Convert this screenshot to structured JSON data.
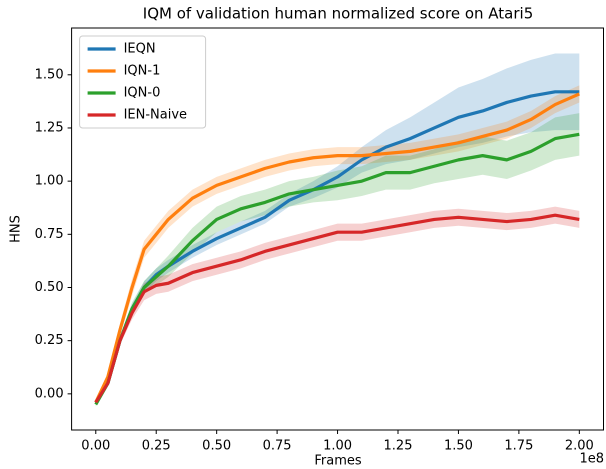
{
  "chart_data": {
    "type": "line",
    "title": "IQM of validation human normalized score on Atari5",
    "xlabel": "Frames",
    "ylabel": "HNS",
    "x_offset_label": "1e8",
    "x": [
      0,
      0.05,
      0.1,
      0.15,
      0.2,
      0.25,
      0.3,
      0.4,
      0.5,
      0.6,
      0.7,
      0.8,
      0.9,
      1.0,
      1.1,
      1.2,
      1.3,
      1.4,
      1.5,
      1.6,
      1.7,
      1.8,
      1.9,
      2.0
    ],
    "series": [
      {
        "name": "IEQN",
        "color": "#1f77b4",
        "values": [
          -0.04,
          0.05,
          0.25,
          0.4,
          0.5,
          0.56,
          0.6,
          0.67,
          0.73,
          0.78,
          0.83,
          0.91,
          0.96,
          1.02,
          1.1,
          1.16,
          1.2,
          1.25,
          1.3,
          1.33,
          1.37,
          1.4,
          1.42,
          1.42
        ],
        "lower": [
          -0.05,
          0.04,
          0.23,
          0.38,
          0.47,
          0.53,
          0.57,
          0.64,
          0.7,
          0.75,
          0.8,
          0.88,
          0.92,
          0.97,
          1.04,
          1.08,
          1.1,
          1.13,
          1.16,
          1.18,
          1.21,
          1.23,
          1.24,
          1.24
        ],
        "upper": [
          -0.03,
          0.06,
          0.27,
          0.42,
          0.53,
          0.59,
          0.63,
          0.7,
          0.76,
          0.81,
          0.86,
          0.94,
          1.0,
          1.07,
          1.16,
          1.24,
          1.3,
          1.37,
          1.44,
          1.48,
          1.53,
          1.57,
          1.6,
          1.6
        ]
      },
      {
        "name": "IQN-1",
        "color": "#ff7f0e",
        "values": [
          -0.04,
          0.08,
          0.3,
          0.5,
          0.68,
          0.75,
          0.82,
          0.92,
          0.98,
          1.02,
          1.06,
          1.09,
          1.11,
          1.12,
          1.12,
          1.13,
          1.14,
          1.16,
          1.18,
          1.21,
          1.24,
          1.29,
          1.36,
          1.41
        ],
        "lower": [
          -0.05,
          0.07,
          0.27,
          0.46,
          0.64,
          0.71,
          0.78,
          0.88,
          0.94,
          0.98,
          1.02,
          1.05,
          1.07,
          1.08,
          1.08,
          1.09,
          1.1,
          1.12,
          1.14,
          1.17,
          1.2,
          1.25,
          1.32,
          1.37
        ],
        "upper": [
          -0.03,
          0.09,
          0.33,
          0.54,
          0.72,
          0.79,
          0.86,
          0.96,
          1.02,
          1.06,
          1.1,
          1.13,
          1.15,
          1.16,
          1.16,
          1.17,
          1.18,
          1.2,
          1.22,
          1.25,
          1.28,
          1.33,
          1.4,
          1.45
        ]
      },
      {
        "name": "IQN-0",
        "color": "#2ca02c",
        "values": [
          -0.05,
          0.05,
          0.25,
          0.4,
          0.5,
          0.55,
          0.6,
          0.72,
          0.82,
          0.87,
          0.9,
          0.94,
          0.96,
          0.98,
          1.0,
          1.04,
          1.04,
          1.07,
          1.1,
          1.12,
          1.1,
          1.14,
          1.2,
          1.22
        ],
        "lower": [
          -0.06,
          0.04,
          0.23,
          0.37,
          0.47,
          0.51,
          0.55,
          0.66,
          0.76,
          0.81,
          0.84,
          0.88,
          0.9,
          0.91,
          0.93,
          0.96,
          0.96,
          0.99,
          1.01,
          1.03,
          1.01,
          1.05,
          1.1,
          1.12
        ],
        "upper": [
          -0.04,
          0.06,
          0.27,
          0.43,
          0.53,
          0.59,
          0.65,
          0.78,
          0.88,
          0.93,
          0.96,
          1.0,
          1.02,
          1.05,
          1.07,
          1.12,
          1.12,
          1.15,
          1.19,
          1.21,
          1.19,
          1.23,
          1.3,
          1.32
        ]
      },
      {
        "name": "IEN-Naive",
        "color": "#d62728",
        "values": [
          -0.04,
          0.05,
          0.25,
          0.38,
          0.48,
          0.51,
          0.52,
          0.57,
          0.6,
          0.63,
          0.67,
          0.7,
          0.73,
          0.76,
          0.76,
          0.78,
          0.8,
          0.82,
          0.83,
          0.82,
          0.81,
          0.82,
          0.84,
          0.82
        ],
        "lower": [
          -0.05,
          0.04,
          0.23,
          0.35,
          0.44,
          0.47,
          0.48,
          0.53,
          0.56,
          0.59,
          0.63,
          0.66,
          0.69,
          0.72,
          0.72,
          0.74,
          0.76,
          0.78,
          0.79,
          0.78,
          0.77,
          0.78,
          0.8,
          0.78
        ],
        "upper": [
          -0.03,
          0.06,
          0.27,
          0.41,
          0.52,
          0.55,
          0.56,
          0.61,
          0.64,
          0.67,
          0.71,
          0.74,
          0.77,
          0.8,
          0.8,
          0.82,
          0.84,
          0.86,
          0.87,
          0.86,
          0.85,
          0.86,
          0.88,
          0.86
        ]
      }
    ],
    "xlim": [
      -0.1,
      2.1
    ],
    "ylim": [
      -0.17,
      1.72
    ],
    "xticks": [
      {
        "value": 0,
        "label": "0.00"
      },
      {
        "value": 0.25,
        "label": "0.25"
      },
      {
        "value": 0.5,
        "label": "0.50"
      },
      {
        "value": 0.75,
        "label": "0.75"
      },
      {
        "value": 1.0,
        "label": "1.00"
      },
      {
        "value": 1.25,
        "label": "1.25"
      },
      {
        "value": 1.5,
        "label": "1.50"
      },
      {
        "value": 1.75,
        "label": "1.75"
      },
      {
        "value": 2.0,
        "label": "2.00"
      }
    ],
    "yticks": [
      {
        "value": 0,
        "label": "0.00"
      },
      {
        "value": 0.25,
        "label": "0.25"
      },
      {
        "value": 0.5,
        "label": "0.50"
      },
      {
        "value": 0.75,
        "label": "0.75"
      },
      {
        "value": 1.0,
        "label": "1.00"
      },
      {
        "value": 1.25,
        "label": "1.25"
      },
      {
        "value": 1.5,
        "label": "1.50"
      }
    ],
    "legend": "upper left",
    "grid": false
  }
}
